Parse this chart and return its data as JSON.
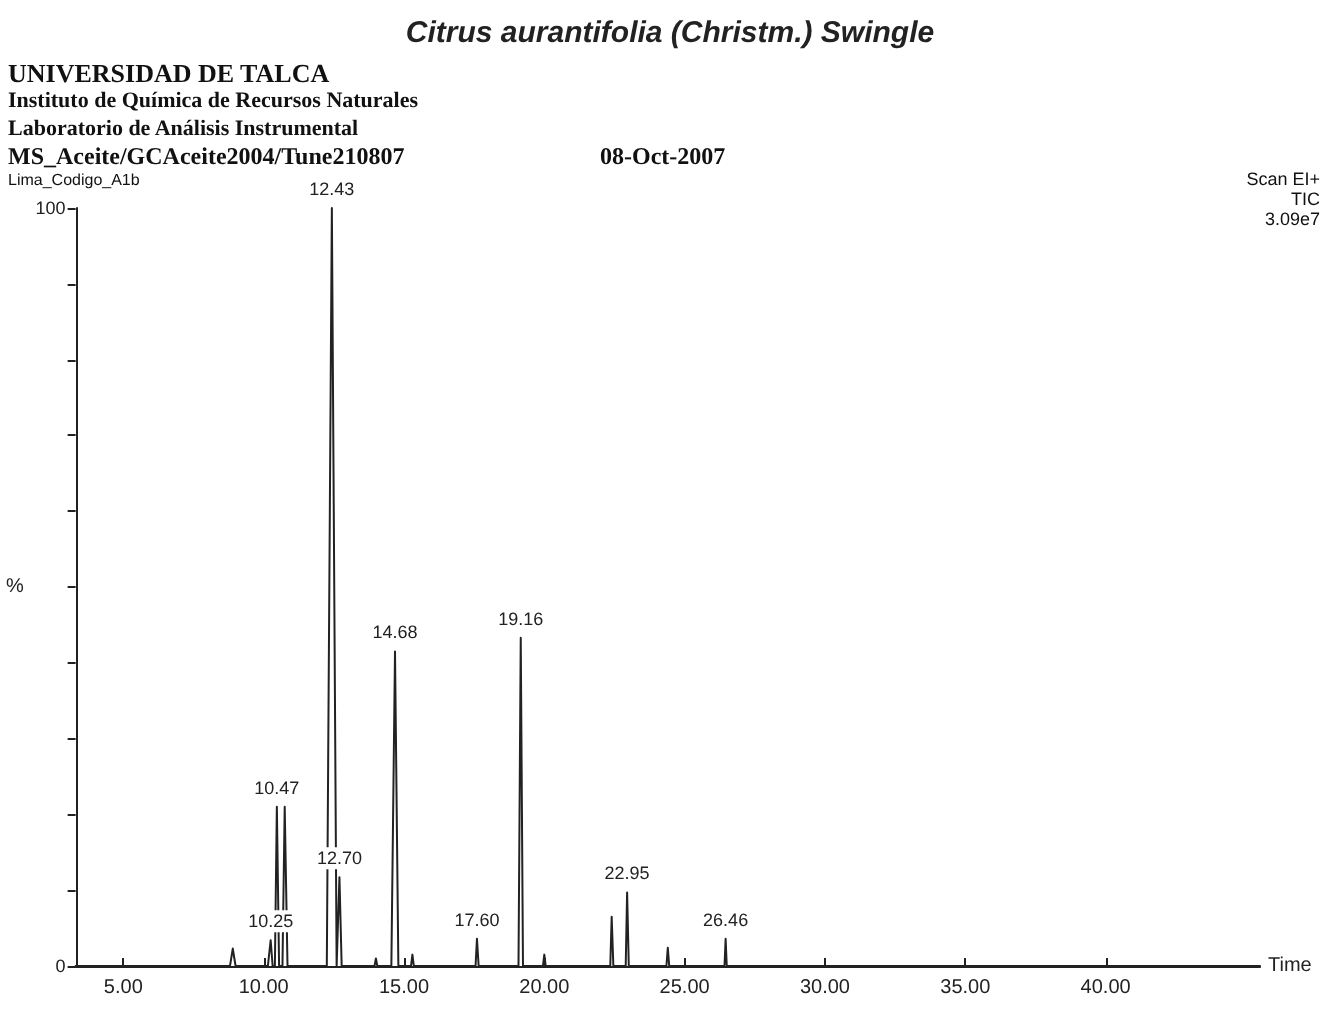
{
  "chart_data": {
    "type": "line",
    "title": "Citrus aurantifolia (Christm.) Swingle",
    "xlabel": "Time",
    "ylabel": "%",
    "x": [
      3.3,
      8.8,
      8.9,
      9.0,
      10.15,
      10.25,
      10.32,
      10.4,
      10.47,
      10.55,
      10.67,
      10.75,
      10.85,
      12.25,
      12.43,
      12.6,
      12.65,
      12.7,
      12.78,
      13.95,
      14.0,
      14.05,
      14.55,
      14.68,
      14.8,
      15.25,
      15.3,
      15.35,
      17.55,
      17.6,
      17.66,
      19.08,
      19.16,
      19.24,
      19.95,
      20.0,
      20.05,
      22.35,
      22.4,
      22.46,
      22.9,
      22.95,
      23.01,
      24.35,
      24.4,
      24.45,
      26.42,
      26.46,
      26.5,
      45.5
    ],
    "series": [
      {
        "color": "#222222",
        "values": [
          0,
          0,
          2.3,
          0,
          0,
          3.4,
          0,
          0,
          21,
          0,
          0,
          21,
          0,
          0,
          100,
          0,
          0,
          11.7,
          0,
          0,
          1,
          0,
          0,
          41.5,
          0,
          0,
          1.5,
          0,
          0,
          3.6,
          0,
          0,
          43.3,
          0,
          0,
          1.5,
          0,
          0,
          6.5,
          0,
          0,
          9.7,
          0,
          0,
          2.4,
          0,
          0,
          3.6,
          0,
          0
        ]
      }
    ],
    "xlim": [
      3.3,
      45.5
    ],
    "ylim": [
      0,
      100
    ],
    "xticks": [
      {
        "value": 5,
        "label": "5.00"
      },
      {
        "value": 10,
        "label": "10.00"
      },
      {
        "value": 15,
        "label": "15.00"
      },
      {
        "value": 20,
        "label": "20.00"
      },
      {
        "value": 25,
        "label": "25.00"
      },
      {
        "value": 30,
        "label": "30.00"
      },
      {
        "value": 35,
        "label": "35.00"
      },
      {
        "value": 40,
        "label": "40.00"
      }
    ],
    "yticks": [
      0,
      {
        "value": 10,
        "label": null
      },
      {
        "value": 20,
        "label": null
      },
      {
        "value": 30,
        "label": null
      },
      {
        "value": 40,
        "label": null
      },
      {
        "value": 50,
        "label": null
      },
      {
        "value": 60,
        "label": null
      },
      {
        "value": 70,
        "label": null
      },
      {
        "value": 80,
        "label": null
      },
      {
        "value": 90,
        "label": null
      },
      100
    ],
    "grid": false,
    "marker": "none",
    "line_style": "solid",
    "annotations": [
      "UNIVERSIDAD DE TALCA",
      "Instituto de Química de Recursos Naturales",
      "Laboratorio de Análisis Instrumental",
      "MS_Aceite/GCAceite2004/Tune210807",
      "08-Oct-2007",
      "Lima_Codigo_A1b",
      "Scan EI+",
      "TIC",
      "3.09e7",
      {
        "text": "10.25",
        "x": 10.25,
        "y": 3.4
      },
      {
        "text": "10.47",
        "x": 10.47,
        "y": 21
      },
      {
        "text": "12.43",
        "x": 12.43,
        "y": 100
      },
      {
        "text": "12.70",
        "x": 12.7,
        "y": 11.7
      },
      {
        "text": "14.68",
        "x": 14.68,
        "y": 41.5
      },
      {
        "text": "17.60",
        "x": 17.6,
        "y": 3.6
      },
      {
        "text": "19.16",
        "x": 19.16,
        "y": 43.3
      },
      {
        "text": "22.95",
        "x": 22.95,
        "y": 9.7
      },
      {
        "text": "26.46",
        "x": 26.46,
        "y": 3.6
      }
    ]
  }
}
